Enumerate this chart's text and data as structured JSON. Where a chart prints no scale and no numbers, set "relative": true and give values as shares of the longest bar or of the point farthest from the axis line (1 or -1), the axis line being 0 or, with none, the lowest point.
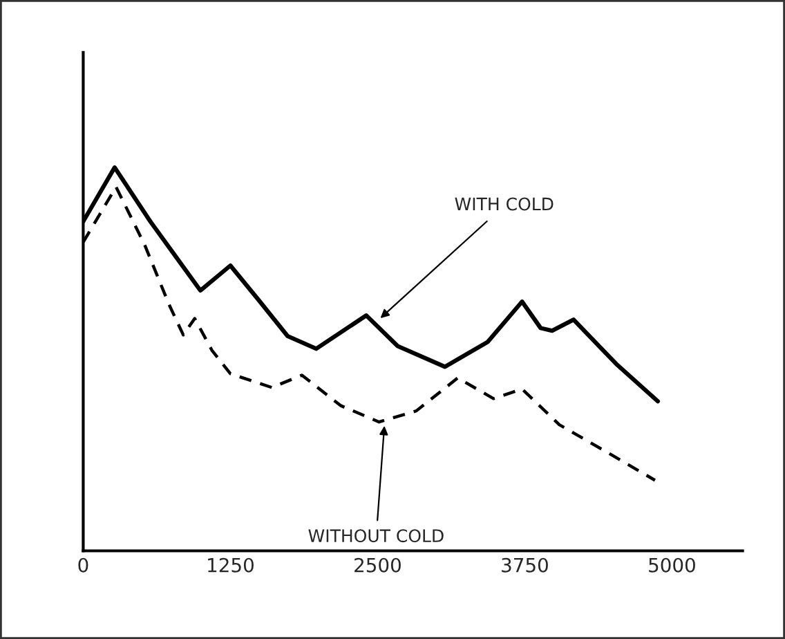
{
  "chart_data": {
    "type": "line",
    "relative": true,
    "xlim": [
      0,
      5600
    ],
    "xticks": [
      0,
      1250,
      2500,
      3750,
      5000
    ],
    "tick_labels": "x",
    "grid": false,
    "marker": "none",
    "series": [
      {
        "color": "#000000",
        "line_style": "solid",
        "x": [
          0,
          267,
          570,
          995,
          1250,
          1493,
          1736,
          1979,
          2404,
          2671,
          3072,
          3436,
          3727,
          3885,
          3982,
          4164,
          4528,
          4880
        ],
        "values": [
          0.859,
          1.0,
          0.859,
          0.679,
          0.744,
          0.653,
          0.56,
          0.527,
          0.614,
          0.534,
          0.48,
          0.545,
          0.65,
          0.581,
          0.574,
          0.603,
          0.487,
          0.39
        ]
      },
      {
        "color": "#000000",
        "line_style": "dashed",
        "x": [
          0,
          279,
          522,
          728,
          850,
          947,
          1093,
          1250,
          1602,
          1857,
          2185,
          2513,
          2829,
          3181,
          3484,
          3727,
          4043,
          4455,
          4856
        ],
        "values": [
          0.805,
          0.949,
          0.798,
          0.643,
          0.563,
          0.606,
          0.523,
          0.462,
          0.426,
          0.458,
          0.379,
          0.336,
          0.365,
          0.451,
          0.397,
          0.422,
          0.329,
          0.256,
          0.184
        ]
      }
    ],
    "annotations": [
      {
        "text": "WITH COLD",
        "x": 2500,
        "y": 0.6
      },
      {
        "text": "WITHOUT COLD",
        "x": 2560,
        "y": 0.336
      }
    ]
  }
}
